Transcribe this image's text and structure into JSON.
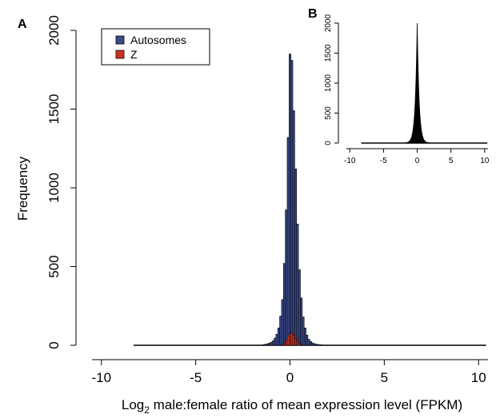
{
  "chart_data": [
    {
      "panel": "A",
      "type": "bar",
      "xlabel_prefix": "Log",
      "xlabel_sub": "2",
      "xlabel_rest": " male:female ratio of mean expression level (FPKM)",
      "ylabel": "Frequency",
      "xlim": [
        -10.5,
        10.5
      ],
      "ylim": [
        0,
        2000
      ],
      "xticks": [
        -10,
        -5,
        0,
        5,
        10
      ],
      "yticks": [
        0,
        500,
        1000,
        1500,
        2000
      ],
      "x_range_drawn": [
        -8.3,
        10.4
      ],
      "bin_width": 0.1,
      "legend": {
        "position": "top-left",
        "entries": [
          "Autosomes",
          "Z"
        ]
      },
      "series": [
        {
          "name": "Autosomes",
          "color": "#3b4a8c",
          "bins": [
            {
              "x": -1.4,
              "y": 4
            },
            {
              "x": -1.3,
              "y": 6
            },
            {
              "x": -1.2,
              "y": 9
            },
            {
              "x": -1.1,
              "y": 13
            },
            {
              "x": -1.0,
              "y": 18
            },
            {
              "x": -0.9,
              "y": 28
            },
            {
              "x": -0.8,
              "y": 45
            },
            {
              "x": -0.7,
              "y": 70
            },
            {
              "x": -0.6,
              "y": 110
            },
            {
              "x": -0.5,
              "y": 185
            },
            {
              "x": -0.4,
              "y": 290
            },
            {
              "x": -0.3,
              "y": 520
            },
            {
              "x": -0.2,
              "y": 860
            },
            {
              "x": -0.1,
              "y": 1320
            },
            {
              "x": 0.0,
              "y": 1850
            },
            {
              "x": 0.1,
              "y": 1810
            },
            {
              "x": 0.2,
              "y": 1490
            },
            {
              "x": 0.3,
              "y": 1120
            },
            {
              "x": 0.4,
              "y": 770
            },
            {
              "x": 0.5,
              "y": 480
            },
            {
              "x": 0.6,
              "y": 300
            },
            {
              "x": 0.7,
              "y": 180
            },
            {
              "x": 0.8,
              "y": 110
            },
            {
              "x": 0.9,
              "y": 65
            },
            {
              "x": 1.0,
              "y": 38
            },
            {
              "x": 1.1,
              "y": 24
            },
            {
              "x": 1.2,
              "y": 15
            },
            {
              "x": 1.3,
              "y": 10
            },
            {
              "x": 1.4,
              "y": 7
            },
            {
              "x": 1.5,
              "y": 5
            },
            {
              "x": 1.6,
              "y": 3
            },
            {
              "x": 1.7,
              "y": 2
            }
          ]
        },
        {
          "name": "Z",
          "color": "#cc3322",
          "bins": [
            {
              "x": -0.4,
              "y": 5
            },
            {
              "x": -0.3,
              "y": 15
            },
            {
              "x": -0.2,
              "y": 35
            },
            {
              "x": -0.1,
              "y": 60
            },
            {
              "x": 0.0,
              "y": 75
            },
            {
              "x": 0.1,
              "y": 80
            },
            {
              "x": 0.2,
              "y": 65
            },
            {
              "x": 0.3,
              "y": 45
            },
            {
              "x": 0.4,
              "y": 25
            },
            {
              "x": 0.5,
              "y": 12
            },
            {
              "x": 0.6,
              "y": 5
            }
          ]
        }
      ]
    },
    {
      "panel": "B",
      "type": "area",
      "xlim": [
        -10.5,
        10.5
      ],
      "ylim": [
        0,
        2000
      ],
      "xticks": [
        -10,
        -5,
        0,
        5,
        10
      ],
      "yticks": [
        0,
        500,
        1000,
        1500,
        2000
      ],
      "x_range_drawn": [
        -8.3,
        10.4
      ],
      "peak": 2000,
      "color": "#000000"
    }
  ]
}
